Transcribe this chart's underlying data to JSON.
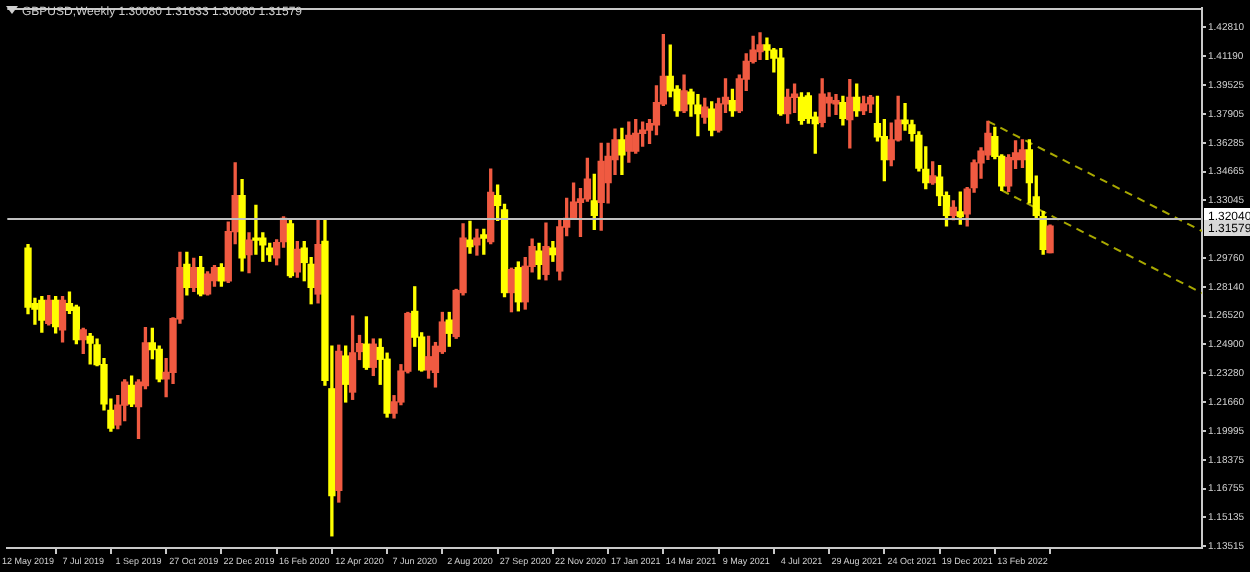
{
  "chart_data": {
    "type": "candlestick",
    "title": "GBPUSD,Weekly 1.30080 1.31633 1.30080 1.31579",
    "x": [
      "2019-05-12",
      "2019-05-19",
      "2019-05-26",
      "2019-06-02",
      "2019-06-09",
      "2019-06-16",
      "2019-06-23",
      "2019-06-30",
      "2019-07-07",
      "2019-07-14",
      "2019-07-21",
      "2019-07-28",
      "2019-08-04",
      "2019-08-11",
      "2019-08-18",
      "2019-08-25",
      "2019-09-01",
      "2019-09-08",
      "2019-09-15",
      "2019-09-22",
      "2019-09-29",
      "2019-10-06",
      "2019-10-13",
      "2019-10-20",
      "2019-10-27",
      "2019-11-03",
      "2019-11-10",
      "2019-11-17",
      "2019-11-24",
      "2019-12-01",
      "2019-12-08",
      "2019-12-15",
      "2019-12-22",
      "2019-12-29",
      "2020-01-05",
      "2020-01-12",
      "2020-01-19",
      "2020-01-26",
      "2020-02-02",
      "2020-02-09",
      "2020-02-16",
      "2020-02-23",
      "2020-03-01",
      "2020-03-08",
      "2020-03-15",
      "2020-03-22",
      "2020-03-29",
      "2020-04-05",
      "2020-04-12",
      "2020-04-19",
      "2020-04-26",
      "2020-05-03",
      "2020-05-10",
      "2020-05-17",
      "2020-05-24",
      "2020-05-31",
      "2020-06-07",
      "2020-06-14",
      "2020-06-21",
      "2020-06-28",
      "2020-07-05",
      "2020-07-12",
      "2020-07-19",
      "2020-07-26",
      "2020-08-02",
      "2020-08-09",
      "2020-08-16",
      "2020-08-23",
      "2020-08-30",
      "2020-09-06",
      "2020-09-13",
      "2020-09-20",
      "2020-09-27",
      "2020-10-04",
      "2020-10-11",
      "2020-10-18",
      "2020-10-25",
      "2020-11-01",
      "2020-11-08",
      "2020-11-15",
      "2020-11-22",
      "2020-11-29",
      "2020-12-06",
      "2020-12-13",
      "2020-12-20",
      "2020-12-27",
      "2021-01-03",
      "2021-01-10",
      "2021-01-17",
      "2021-01-24",
      "2021-01-31",
      "2021-02-07",
      "2021-02-14",
      "2021-02-21",
      "2021-02-28",
      "2021-03-07",
      "2021-03-14",
      "2021-03-21",
      "2021-03-28",
      "2021-04-04",
      "2021-04-11",
      "2021-04-18",
      "2021-04-25",
      "2021-05-02",
      "2021-05-09",
      "2021-05-16",
      "2021-05-23",
      "2021-05-30",
      "2021-06-06",
      "2021-06-13",
      "2021-06-20",
      "2021-06-27",
      "2021-07-04",
      "2021-07-11",
      "2021-07-18",
      "2021-07-25",
      "2021-08-01",
      "2021-08-08",
      "2021-08-15",
      "2021-08-22",
      "2021-08-29",
      "2021-09-05",
      "2021-09-12",
      "2021-09-19",
      "2021-09-26",
      "2021-10-03",
      "2021-10-10",
      "2021-10-17",
      "2021-10-24",
      "2021-10-31",
      "2021-11-07",
      "2021-11-14",
      "2021-11-21",
      "2021-11-28",
      "2021-12-05",
      "2021-12-12",
      "2021-12-19",
      "2021-12-26",
      "2022-01-02",
      "2022-01-09",
      "2022-01-16",
      "2022-01-23",
      "2022-01-30",
      "2022-02-06",
      "2022-02-13",
      "2022-02-20",
      "2022-02-27",
      "2022-03-06",
      "2022-03-13"
    ],
    "ohlc": [
      [
        1.3034,
        1.3053,
        1.2664,
        1.2701
      ],
      [
        1.272,
        1.275,
        1.2605,
        1.269
      ],
      [
        1.2738,
        1.276,
        1.256,
        1.2627
      ],
      [
        1.2609,
        1.2765,
        1.26,
        1.2738
      ],
      [
        1.2738,
        1.276,
        1.2555,
        1.259
      ],
      [
        1.2572,
        1.276,
        1.2505,
        1.2738
      ],
      [
        1.272,
        1.2785,
        1.2665,
        1.2683
      ],
      [
        1.2701,
        1.271,
        1.2495,
        1.2517
      ],
      [
        1.2517,
        1.258,
        1.244,
        1.2572
      ],
      [
        1.2535,
        1.255,
        1.238,
        1.2498
      ],
      [
        1.2487,
        1.252,
        1.237,
        1.2376
      ],
      [
        1.2376,
        1.241,
        1.212,
        1.2154
      ],
      [
        1.2117,
        1.218,
        1.2,
        1.2017
      ],
      [
        1.2036,
        1.22,
        1.2015,
        1.2147
      ],
      [
        1.2147,
        1.229,
        1.206,
        1.2276
      ],
      [
        1.2258,
        1.231,
        1.214,
        1.2154
      ],
      [
        1.2139,
        1.229,
        1.196,
        1.2276
      ],
      [
        1.2258,
        1.2585,
        1.224,
        1.2498
      ],
      [
        1.2498,
        1.258,
        1.241,
        1.2461
      ],
      [
        1.2461,
        1.248,
        1.228,
        1.2295
      ],
      [
        1.2295,
        1.241,
        1.2195,
        1.2332
      ],
      [
        1.2332,
        1.264,
        1.227,
        1.2635
      ],
      [
        1.2635,
        1.301,
        1.261,
        1.2923
      ],
      [
        1.2942,
        1.301,
        1.277,
        1.2812
      ],
      [
        1.2812,
        1.2975,
        1.279,
        1.2923
      ],
      [
        1.2923,
        1.2985,
        1.2765,
        1.2775
      ],
      [
        1.2775,
        1.29,
        1.277,
        1.2886
      ],
      [
        1.285,
        1.2935,
        1.282,
        1.2923
      ],
      [
        1.2923,
        1.2945,
        1.282,
        1.2849
      ],
      [
        1.2849,
        1.318,
        1.284,
        1.3127
      ],
      [
        1.3127,
        1.3515,
        1.306,
        1.333
      ],
      [
        1.333,
        1.342,
        1.2905,
        1.2979
      ],
      [
        1.2997,
        1.312,
        1.2895,
        1.3079
      ],
      [
        1.309,
        1.3275,
        1.3,
        1.3079
      ],
      [
        1.309,
        1.312,
        1.296,
        1.3053
      ],
      [
        1.3034,
        1.306,
        1.296,
        1.2997
      ],
      [
        1.2979,
        1.308,
        1.294,
        1.3064
      ],
      [
        1.3071,
        1.321,
        1.304,
        1.3201
      ],
      [
        1.3171,
        1.32,
        1.287,
        1.2879
      ],
      [
        1.29,
        1.307,
        1.287,
        1.3027
      ],
      [
        1.3034,
        1.307,
        1.285,
        1.2953
      ],
      [
        1.2942,
        1.298,
        1.272,
        1.2812
      ],
      [
        1.2775,
        1.32,
        1.2725,
        1.3053
      ],
      [
        1.3071,
        1.32,
        1.226,
        1.2287
      ],
      [
        1.2239,
        1.248,
        1.1409,
        1.1636
      ],
      [
        1.1666,
        1.2485,
        1.16,
        1.245
      ],
      [
        1.2424,
        1.248,
        1.2165,
        1.2265
      ],
      [
        1.2221,
        1.265,
        1.218,
        1.2442
      ],
      [
        1.245,
        1.254,
        1.2405,
        1.2494
      ],
      [
        1.2491,
        1.2645,
        1.235,
        1.2361
      ],
      [
        1.2361,
        1.252,
        1.2315,
        1.2491
      ],
      [
        1.2472,
        1.252,
        1.2265,
        1.2406
      ],
      [
        1.2406,
        1.244,
        1.208,
        1.2102
      ],
      [
        1.2102,
        1.22,
        1.2075,
        1.2165
      ],
      [
        1.2165,
        1.2375,
        1.215,
        1.2339
      ],
      [
        1.2339,
        1.267,
        1.233,
        1.2664
      ],
      [
        1.2676,
        1.2815,
        1.248,
        1.2531
      ],
      [
        1.2531,
        1.2555,
        1.234,
        1.2346
      ],
      [
        1.2346,
        1.2535,
        1.23,
        1.242
      ],
      [
        1.2332,
        1.25,
        1.225,
        1.2479
      ],
      [
        1.245,
        1.267,
        1.244,
        1.2616
      ],
      [
        1.2627,
        1.267,
        1.248,
        1.2553
      ],
      [
        1.2535,
        1.28,
        1.2525,
        1.2794
      ],
      [
        1.2783,
        1.317,
        1.277,
        1.309
      ],
      [
        1.3079,
        1.3185,
        1.3005,
        1.3042
      ],
      [
        1.3053,
        1.314,
        1.2995,
        1.309
      ],
      [
        1.3108,
        1.314,
        1.3,
        1.309
      ],
      [
        1.3071,
        1.348,
        1.306,
        1.3349
      ],
      [
        1.333,
        1.339,
        1.319,
        1.3275
      ],
      [
        1.3249,
        1.328,
        1.276,
        1.2783
      ],
      [
        1.2783,
        1.292,
        1.2675,
        1.2912
      ],
      [
        1.2923,
        1.2955,
        1.268,
        1.2731
      ],
      [
        1.2731,
        1.298,
        1.269,
        1.2931
      ],
      [
        1.2931,
        1.3085,
        1.29,
        1.3042
      ],
      [
        1.3016,
        1.306,
        1.286,
        1.2942
      ],
      [
        1.2886,
        1.3175,
        1.2855,
        1.3042
      ],
      [
        1.3034,
        1.307,
        1.296,
        1.2997
      ],
      [
        1.2905,
        1.32,
        1.2855,
        1.3153
      ],
      [
        1.3153,
        1.3315,
        1.3105,
        1.3201
      ],
      [
        1.3201,
        1.34,
        1.32,
        1.3293
      ],
      [
        1.3293,
        1.337,
        1.31,
        1.3312
      ],
      [
        1.3312,
        1.354,
        1.33,
        1.3423
      ],
      [
        1.33,
        1.345,
        1.314,
        1.3219
      ],
      [
        1.3293,
        1.3625,
        1.3135,
        1.3523
      ],
      [
        1.3404,
        1.3625,
        1.329,
        1.3552
      ],
      [
        1.3534,
        1.3705,
        1.345,
        1.3645
      ],
      [
        1.3645,
        1.371,
        1.345,
        1.356
      ],
      [
        1.3582,
        1.3745,
        1.352,
        1.3671
      ],
      [
        1.3582,
        1.376,
        1.357,
        1.3682
      ],
      [
        1.3682,
        1.3745,
        1.361,
        1.37
      ],
      [
        1.37,
        1.376,
        1.3625,
        1.3737
      ],
      [
        1.373,
        1.395,
        1.3675,
        1.3856
      ],
      [
        1.3848,
        1.424,
        1.384,
        1.4003
      ],
      [
        1.4003,
        1.418,
        1.389,
        1.3922
      ],
      [
        1.393,
        1.395,
        1.378,
        1.3811
      ],
      [
        1.3811,
        1.401,
        1.38,
        1.3922
      ],
      [
        1.3915,
        1.393,
        1.378,
        1.3848
      ],
      [
        1.3841,
        1.39,
        1.367,
        1.3793
      ],
      [
        1.3774,
        1.388,
        1.374,
        1.383
      ],
      [
        1.3819,
        1.386,
        1.367,
        1.37
      ],
      [
        1.37,
        1.388,
        1.369,
        1.3848
      ],
      [
        1.3848,
        1.399,
        1.38,
        1.3885
      ],
      [
        1.3867,
        1.393,
        1.378,
        1.3811
      ],
      [
        1.3811,
        1.401,
        1.38,
        1.3989
      ],
      [
        1.3989,
        1.413,
        1.3925,
        1.4089
      ],
      [
        1.4089,
        1.423,
        1.408,
        1.4152
      ],
      [
        1.4144,
        1.425,
        1.41,
        1.4181
      ],
      [
        1.4181,
        1.422,
        1.41,
        1.4152
      ],
      [
        1.4152,
        1.416,
        1.403,
        1.4107
      ],
      [
        1.4107,
        1.416,
        1.3785,
        1.3793
      ],
      [
        1.3793,
        1.393,
        1.374,
        1.3885
      ],
      [
        1.3885,
        1.396,
        1.38,
        1.3903
      ],
      [
        1.3885,
        1.391,
        1.3735,
        1.3756
      ],
      [
        1.3893,
        1.391,
        1.374,
        1.3767
      ],
      [
        1.3774,
        1.38,
        1.357,
        1.3737
      ],
      [
        1.3744,
        1.399,
        1.372,
        1.3904
      ],
      [
        1.3855,
        1.391,
        1.378,
        1.3885
      ],
      [
        1.3848,
        1.39,
        1.379,
        1.3867
      ],
      [
        1.3856,
        1.389,
        1.373,
        1.3767
      ],
      [
        1.376,
        1.3985,
        1.36,
        1.3885
      ],
      [
        1.3885,
        1.396,
        1.378,
        1.3811
      ],
      [
        1.3811,
        1.389,
        1.379,
        1.3848
      ],
      [
        1.3848,
        1.3895,
        1.38,
        1.3885
      ],
      [
        1.3737,
        1.389,
        1.364,
        1.3663
      ],
      [
        1.3663,
        1.376,
        1.3415,
        1.3534
      ],
      [
        1.3534,
        1.374,
        1.35,
        1.3645
      ],
      [
        1.3645,
        1.389,
        1.364,
        1.3756
      ],
      [
        1.3756,
        1.385,
        1.37,
        1.3737
      ],
      [
        1.373,
        1.3755,
        1.364,
        1.3682
      ],
      [
        1.3671,
        1.369,
        1.347,
        1.3486
      ],
      [
        1.3478,
        1.3605,
        1.337,
        1.3404
      ],
      [
        1.3404,
        1.352,
        1.3395,
        1.3441
      ],
      [
        1.3434,
        1.35,
        1.3275,
        1.333
      ],
      [
        1.333,
        1.335,
        1.316,
        1.3219
      ],
      [
        1.3219,
        1.33,
        1.3195,
        1.3264
      ],
      [
        1.3238,
        1.335,
        1.317,
        1.3212
      ],
      [
        1.3227,
        1.3375,
        1.316,
        1.3367
      ],
      [
        1.3375,
        1.353,
        1.335,
        1.3515
      ],
      [
        1.3515,
        1.36,
        1.343,
        1.3582
      ],
      [
        1.356,
        1.375,
        1.3535,
        1.3682
      ],
      [
        1.3663,
        1.3715,
        1.354,
        1.3552
      ],
      [
        1.3552,
        1.356,
        1.336,
        1.3386
      ],
      [
        1.3386,
        1.356,
        1.3355,
        1.3545
      ],
      [
        1.3534,
        1.364,
        1.3485,
        1.3571
      ],
      [
        1.3534,
        1.3645,
        1.349,
        1.3589
      ],
      [
        1.3589,
        1.3645,
        1.329,
        1.3404
      ],
      [
        1.3323,
        1.344,
        1.32,
        1.3219
      ],
      [
        1.3212,
        1.324,
        1.3,
        1.3027
      ],
      [
        1.3008,
        1.31633,
        1.3008,
        1.31579
      ]
    ],
    "colors": [
      "#ffff00",
      "#ffff00",
      "#ffff00",
      "#f05a41",
      "#ffff00",
      "#f05a41",
      "#ffff00",
      "#ffff00",
      "#f05a41",
      "#ffff00",
      "#ffff00",
      "#ffff00",
      "#ffff00",
      "#f05a41",
      "#f05a41",
      "#ffff00",
      "#f05a41",
      "#f05a41",
      "#ffff00",
      "#ffff00",
      "#f05a41",
      "#f05a41",
      "#f05a41",
      "#ffff00",
      "#f05a41",
      "#ffff00",
      "#f05a41",
      "#f05a41",
      "#ffff00",
      "#f05a41",
      "#f05a41",
      "#ffff00",
      "#f05a41",
      "#ffff00",
      "#ffff00",
      "#ffff00",
      "#f05a41",
      "#f05a41",
      "#ffff00",
      "#f05a41",
      "#ffff00",
      "#ffff00",
      "#f05a41",
      "#ffff00",
      "#ffff00",
      "#f05a41",
      "#ffff00",
      "#f05a41",
      "#f05a41",
      "#ffff00",
      "#f05a41",
      "#ffff00",
      "#ffff00",
      "#f05a41",
      "#f05a41",
      "#f05a41",
      "#ffff00",
      "#ffff00",
      "#f05a41",
      "#f05a41",
      "#f05a41",
      "#ffff00",
      "#f05a41",
      "#f05a41",
      "#ffff00",
      "#f05a41",
      "#ffff00",
      "#f05a41",
      "#ffff00",
      "#ffff00",
      "#f05a41",
      "#ffff00",
      "#f05a41",
      "#f05a41",
      "#ffff00",
      "#f05a41",
      "#ffff00",
      "#f05a41",
      "#f05a41",
      "#f05a41",
      "#f05a41",
      "#f05a41",
      "#ffff00",
      "#f05a41",
      "#f05a41",
      "#f05a41",
      "#ffff00",
      "#f05a41",
      "#f05a41",
      "#f05a41",
      "#f05a41",
      "#f05a41",
      "#f05a41",
      "#ffff00",
      "#ffff00",
      "#f05a41",
      "#ffff00",
      "#ffff00",
      "#f05a41",
      "#ffff00",
      "#f05a41",
      "#f05a41",
      "#ffff00",
      "#f05a41",
      "#f05a41",
      "#f05a41",
      "#f05a41",
      "#ffff00",
      "#ffff00",
      "#ffff00",
      "#f05a41",
      "#f05a41",
      "#ffff00",
      "#ffff00",
      "#ffff00",
      "#f05a41",
      "#f05a41",
      "#f05a41",
      "#ffff00",
      "#f05a41",
      "#ffff00",
      "#f05a41",
      "#f05a41",
      "#ffff00",
      "#ffff00",
      "#f05a41",
      "#f05a41",
      "#ffff00",
      "#ffff00",
      "#ffff00",
      "#ffff00",
      "#f05a41",
      "#ffff00",
      "#ffff00",
      "#f05a41",
      "#ffff00",
      "#f05a41",
      "#f05a41",
      "#f05a41",
      "#f05a41",
      "#ffff00",
      "#ffff00",
      "#f05a41",
      "#f05a41",
      "#f05a41",
      "#ffff00",
      "#ffff00",
      "#ffff00",
      "#f05a41"
    ],
    "series": [
      {
        "type": "line",
        "color": "#a8a800",
        "line_style": "dashed",
        "x": [
          "2022-01-09",
          "2022-08-14"
        ],
        "values": [
          1.375,
          1.313
        ]
      },
      {
        "type": "line",
        "color": "#a8a800",
        "line_style": "dashed",
        "x": [
          "2022-01-23",
          "2022-08-14"
        ],
        "values": [
          1.336,
          1.278
        ]
      }
    ],
    "ref_lines": [
      {
        "axis": "y",
        "value": 1.3204,
        "label": "1.32040",
        "color": "#c0c0c0"
      }
    ],
    "annotations": [
      "1.31579"
    ],
    "xlim": [
      "2019-04-21",
      "2022-08-14"
    ],
    "xticks": [
      {
        "value": "2019-05-12",
        "label": "12 May 2019"
      },
      {
        "value": "2019-07-07",
        "label": "7 Jul 2019"
      },
      {
        "value": "2019-09-01",
        "label": "1 Sep 2019"
      },
      {
        "value": "2019-10-27",
        "label": "27 Oct 2019"
      },
      {
        "value": "2019-12-22",
        "label": "22 Dec 2019"
      },
      {
        "value": "2020-02-16",
        "label": "16 Feb 2020"
      },
      {
        "value": "2020-04-12",
        "label": "12 Apr 2020"
      },
      {
        "value": "2020-06-07",
        "label": "7 Jun 2020"
      },
      {
        "value": "2020-08-02",
        "label": "2 Aug 2020"
      },
      {
        "value": "2020-09-27",
        "label": "27 Sep 2020"
      },
      {
        "value": "2020-11-22",
        "label": "22 Nov 2020"
      },
      {
        "value": "2021-01-17",
        "label": "17 Jan 2021"
      },
      {
        "value": "2021-03-14",
        "label": "14 Mar 2021"
      },
      {
        "value": "2021-05-09",
        "label": "9 May 2021"
      },
      {
        "value": "2021-07-04",
        "label": "4 Jul 2021"
      },
      {
        "value": "2021-08-29",
        "label": "29 Aug 2021"
      },
      {
        "value": "2021-10-24",
        "label": "24 Oct 2021"
      },
      {
        "value": "2021-12-19",
        "label": "19 Dec 2021"
      },
      {
        "value": "2022-02-13",
        "label": "13 Feb 2022"
      }
    ],
    "ylim": [
      1.134,
      1.439
    ],
    "yticks": [
      {
        "value": 1.4281,
        "label": "1.42810"
      },
      {
        "value": 1.4119,
        "label": "1.41190"
      },
      {
        "value": 1.39525,
        "label": "1.39525"
      },
      {
        "value": 1.37905,
        "label": "1.37905"
      },
      {
        "value": 1.36285,
        "label": "1.36285"
      },
      {
        "value": 1.34665,
        "label": "1.34665"
      },
      {
        "value": 1.33045,
        "label": "1.33045"
      },
      {
        "value": 1.2976,
        "label": "1.29760"
      },
      {
        "value": 1.2814,
        "label": "1.28140"
      },
      {
        "value": 1.2652,
        "label": "1.26520"
      },
      {
        "value": 1.249,
        "label": "1.24900"
      },
      {
        "value": 1.2328,
        "label": "1.23280"
      },
      {
        "value": 1.2166,
        "label": "1.21660"
      },
      {
        "value": 1.19995,
        "label": "1.19995"
      },
      {
        "value": 1.18375,
        "label": "1.18375"
      },
      {
        "value": 1.16755,
        "label": "1.16755"
      },
      {
        "value": 1.15135,
        "label": "1.15135"
      },
      {
        "value": 1.13515,
        "label": "1.13515"
      }
    ]
  }
}
